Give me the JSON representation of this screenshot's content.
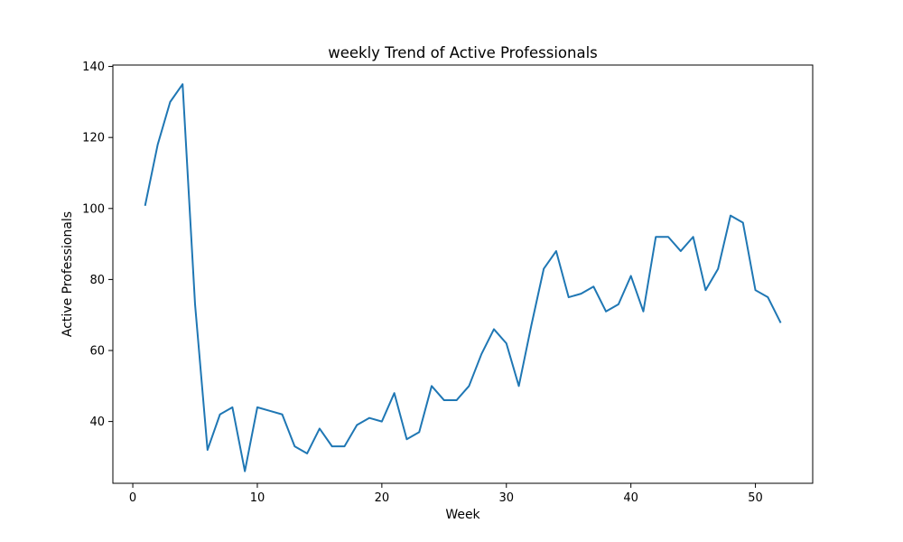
{
  "chart_data": {
    "type": "line",
    "title": "weekly Trend of Active Professionals",
    "xlabel": "Week",
    "ylabel": "Active Professionals",
    "xlim": [
      -1.6,
      54.6
    ],
    "ylim": [
      22.6,
      140.4
    ],
    "xticks": [
      0,
      10,
      20,
      30,
      40,
      50
    ],
    "yticks": [
      40,
      60,
      80,
      100,
      120,
      140
    ],
    "grid": false,
    "series": [
      {
        "color": "#1f77b4",
        "x": [
          1,
          2,
          3,
          4,
          5,
          6,
          7,
          8,
          9,
          10,
          11,
          12,
          13,
          14,
          15,
          16,
          17,
          18,
          19,
          20,
          21,
          22,
          23,
          24,
          25,
          26,
          27,
          28,
          29,
          30,
          31,
          32,
          33,
          34,
          35,
          36,
          37,
          38,
          39,
          40,
          41,
          42,
          43,
          44,
          45,
          46,
          47,
          48,
          49,
          50,
          51,
          52
        ],
        "y": [
          101,
          118,
          130,
          135,
          73,
          32,
          42,
          44,
          26,
          44,
          43,
          42,
          33,
          31,
          38,
          33,
          33,
          39,
          41,
          40,
          48,
          35,
          37,
          50,
          46,
          46,
          50,
          59,
          66,
          62,
          50,
          67,
          83,
          88,
          75,
          76,
          78,
          71,
          73,
          81,
          71,
          92,
          92,
          88,
          92,
          77,
          83,
          98,
          96,
          77,
          75,
          68
        ]
      }
    ]
  }
}
